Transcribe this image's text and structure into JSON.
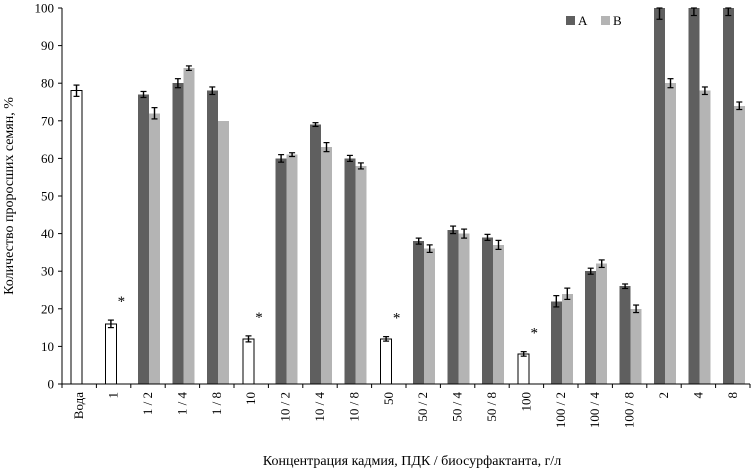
{
  "chart_data": {
    "type": "bar",
    "xlabel": "Концентрация кадмия, ПДК / биосурфактанта, г/л",
    "ylabel": "Количество проросших семян, %",
    "ylim": [
      0,
      100
    ],
    "yticks": [
      "0",
      "10",
      "20",
      "30",
      "40",
      "50",
      "60",
      "70",
      "80",
      "90",
      "100"
    ],
    "legend": {
      "position": "top-right",
      "entries": [
        {
          "label": "A",
          "color": "#5f5f5f"
        },
        {
          "label": "B",
          "color": "#b4b4b4"
        }
      ]
    },
    "colors": {
      "control_fill": "#ffffff",
      "control_stroke": "#000000",
      "A": "#5f5f5f",
      "B": "#b4b4b4"
    },
    "significance_marker": "*",
    "groups": [
      {
        "label": "Вода",
        "bars": [
          {
            "series": "control",
            "value": 78,
            "err": 1.5
          }
        ]
      },
      {
        "label": "1",
        "bars": [
          {
            "series": "control",
            "value": 16,
            "err": 1
          }
        ],
        "marker": "*"
      },
      {
        "label": "1 / 2",
        "bars": [
          {
            "series": "A",
            "value": 77,
            "err": 0.8
          },
          {
            "series": "B",
            "value": 72,
            "err": 1.5
          }
        ]
      },
      {
        "label": "1 / 4",
        "bars": [
          {
            "series": "A",
            "value": 80,
            "err": 1.2
          },
          {
            "series": "B",
            "value": 84,
            "err": 0.6
          }
        ]
      },
      {
        "label": "1 / 8",
        "bars": [
          {
            "series": "A",
            "value": 78,
            "err": 1
          },
          {
            "series": "B",
            "value": 70,
            "err": 0
          }
        ]
      },
      {
        "label": "10",
        "bars": [
          {
            "series": "control",
            "value": 12,
            "err": 0.8
          }
        ],
        "marker": "*"
      },
      {
        "label": "10 / 2",
        "bars": [
          {
            "series": "A",
            "value": 60,
            "err": 1
          },
          {
            "series": "B",
            "value": 61,
            "err": 0.5
          }
        ]
      },
      {
        "label": "10 / 4",
        "bars": [
          {
            "series": "A",
            "value": 69,
            "err": 0.5
          },
          {
            "series": "B",
            "value": 63,
            "err": 1.2
          }
        ]
      },
      {
        "label": "10 / 8",
        "bars": [
          {
            "series": "A",
            "value": 60,
            "err": 0.8
          },
          {
            "series": "B",
            "value": 58,
            "err": 0.8
          }
        ]
      },
      {
        "label": "50",
        "bars": [
          {
            "series": "control",
            "value": 12,
            "err": 0.6
          }
        ],
        "marker": "*"
      },
      {
        "label": "50 / 2",
        "bars": [
          {
            "series": "A",
            "value": 38,
            "err": 0.8
          },
          {
            "series": "B",
            "value": 36,
            "err": 1
          }
        ]
      },
      {
        "label": "50 / 4",
        "bars": [
          {
            "series": "A",
            "value": 41,
            "err": 1
          },
          {
            "series": "B",
            "value": 40,
            "err": 1.2
          }
        ]
      },
      {
        "label": "50 / 8",
        "bars": [
          {
            "series": "A",
            "value": 39,
            "err": 0.8
          },
          {
            "series": "B",
            "value": 37,
            "err": 1.2
          }
        ]
      },
      {
        "label": "100",
        "bars": [
          {
            "series": "control",
            "value": 8,
            "err": 0.6
          }
        ],
        "marker": "*"
      },
      {
        "label": "100 / 2",
        "bars": [
          {
            "series": "A",
            "value": 22,
            "err": 1.5
          },
          {
            "series": "B",
            "value": 24,
            "err": 1.5
          }
        ]
      },
      {
        "label": "100 / 4",
        "bars": [
          {
            "series": "A",
            "value": 30,
            "err": 0.8
          },
          {
            "series": "B",
            "value": 32,
            "err": 1
          }
        ]
      },
      {
        "label": "100 / 8",
        "bars": [
          {
            "series": "A",
            "value": 26,
            "err": 0.6
          },
          {
            "series": "B",
            "value": 20,
            "err": 1
          }
        ]
      },
      {
        "label": "2",
        "bars": [
          {
            "series": "A",
            "value": 100,
            "err": 3
          },
          {
            "series": "B",
            "value": 80,
            "err": 1.2
          }
        ]
      },
      {
        "label": "4",
        "bars": [
          {
            "series": "A",
            "value": 100,
            "err": 2
          },
          {
            "series": "B",
            "value": 78,
            "err": 1
          }
        ]
      },
      {
        "label": "8",
        "bars": [
          {
            "series": "A",
            "value": 100,
            "err": 2
          },
          {
            "series": "B",
            "value": 74,
            "err": 1
          }
        ]
      }
    ]
  }
}
